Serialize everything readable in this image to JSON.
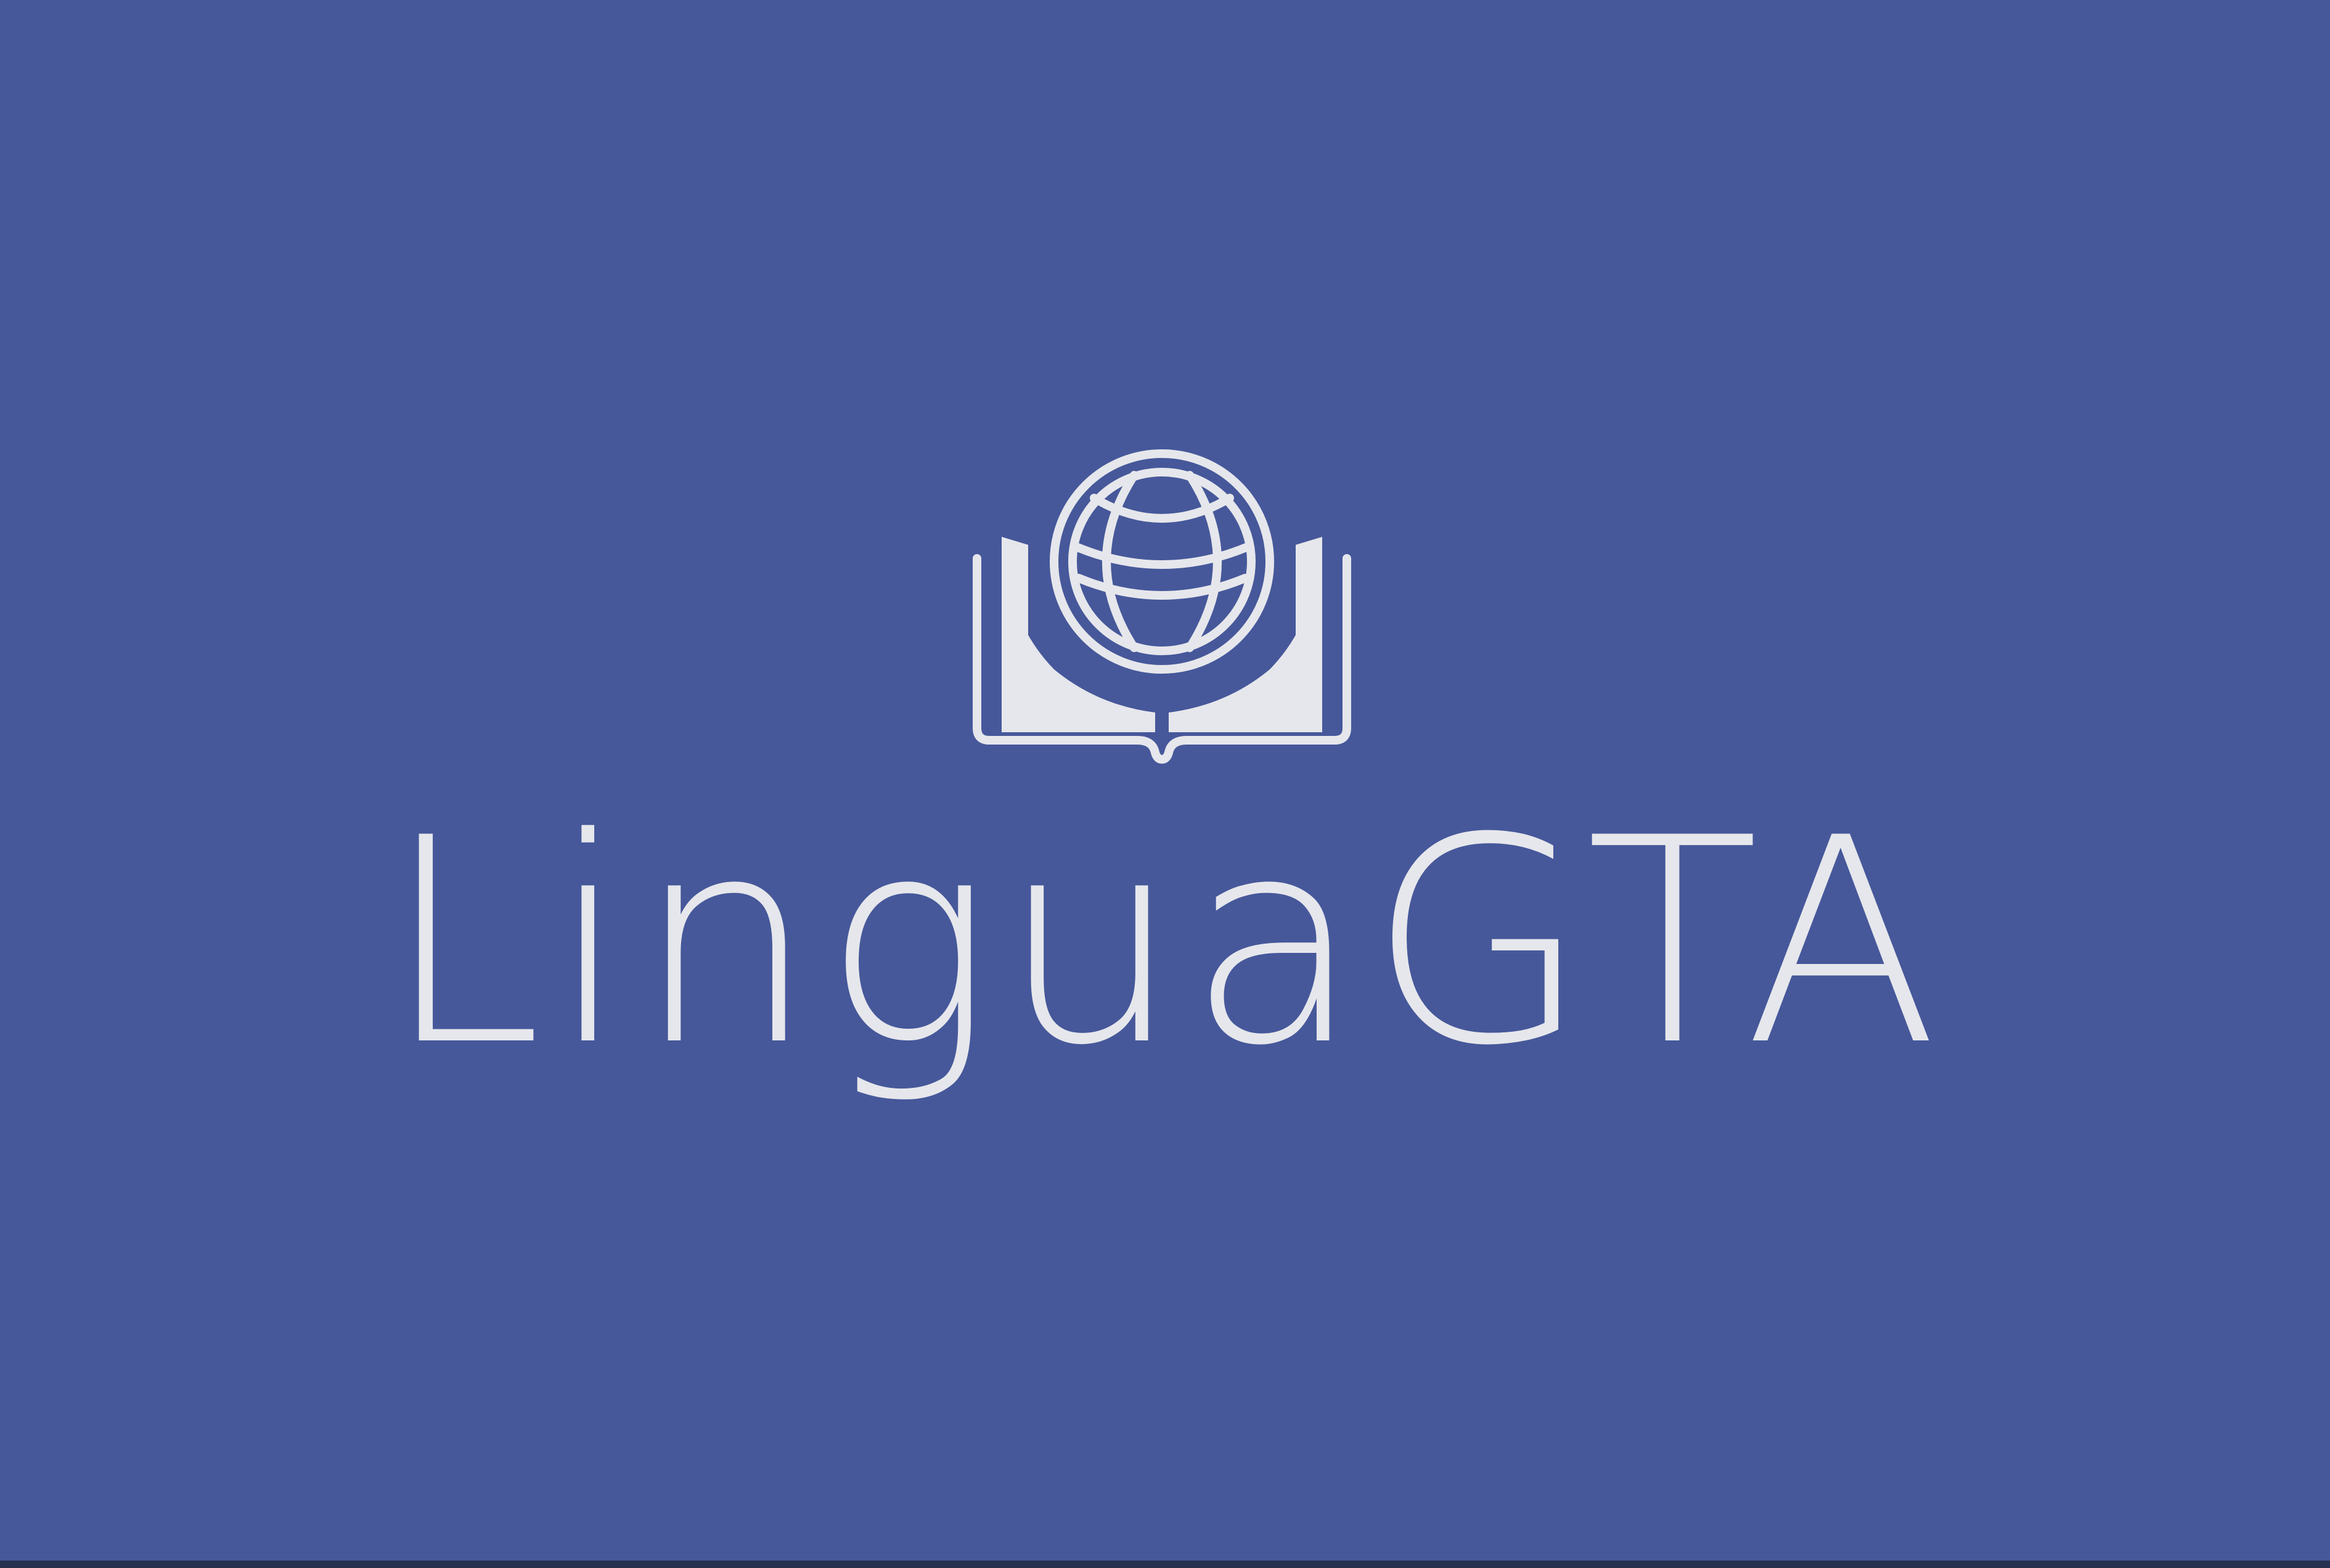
{
  "brand": {
    "name": "LinguaGTA",
    "icon": "globe-book-icon",
    "text_color": "#e6e7ec",
    "background_color": "#46589a"
  }
}
